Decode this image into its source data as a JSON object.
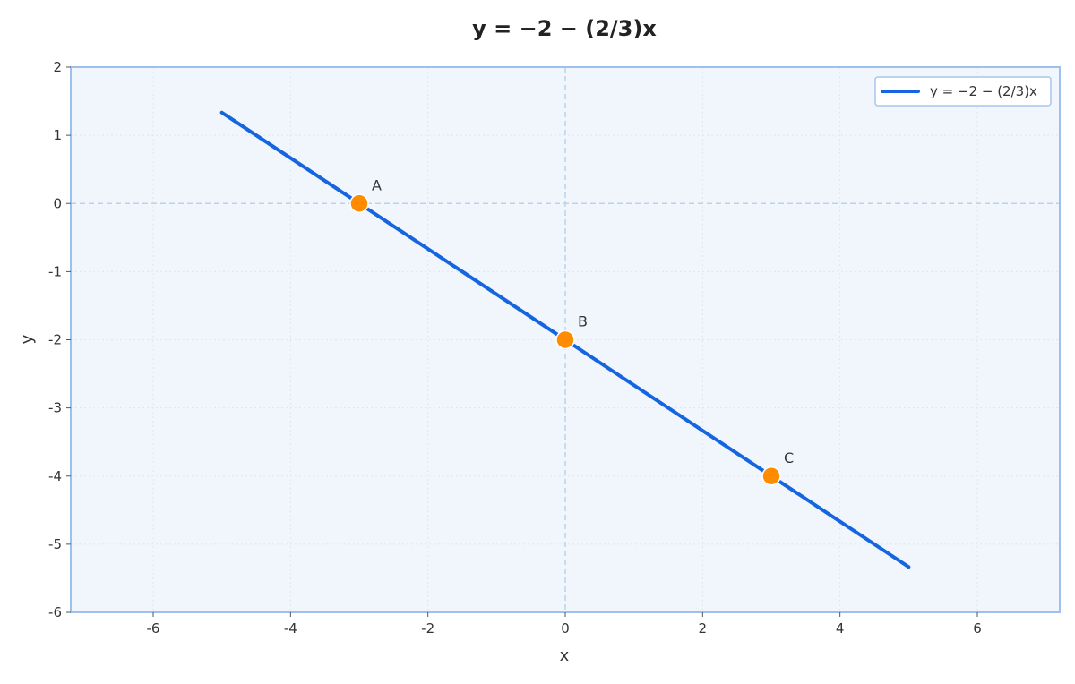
{
  "chart_data": {
    "type": "line",
    "title": "y = −2 − (2/3)x",
    "xlabel": "x",
    "ylabel": "y",
    "xlim": [
      -7.2,
      7.2
    ],
    "ylim": [
      -6,
      2
    ],
    "x_ticks": [
      -6,
      -4,
      -2,
      0,
      2,
      4,
      6
    ],
    "y_ticks": [
      2,
      1,
      0,
      -1,
      -2,
      -3,
      -4,
      -5,
      -6
    ],
    "x_tick_labels": [
      "-6",
      "-4",
      "-2",
      "0",
      "2",
      "4",
      "6"
    ],
    "y_tick_labels": [
      "2",
      "1",
      "0",
      "-1",
      "-2",
      "-3",
      "-4",
      "-5",
      "-6"
    ],
    "grid": true,
    "legend_position": "top-right",
    "series": [
      {
        "name": "y = −2 − (2/3)x",
        "color": "#1565e0",
        "x": [
          -5,
          5
        ],
        "y": [
          1.3333,
          -5.3333
        ]
      }
    ],
    "points": [
      {
        "label": "A",
        "x": -3,
        "y": 0
      },
      {
        "label": "B",
        "x": 0,
        "y": -2
      },
      {
        "label": "C",
        "x": 3,
        "y": -4
      }
    ],
    "colors": {
      "line": "#1565e0",
      "points": "#ff8c00",
      "plot_background": "#f1f6fd",
      "plot_border": "#9ec0ef",
      "zero_lines": "#b9d3ea",
      "grid": "#dde6f2"
    }
  }
}
